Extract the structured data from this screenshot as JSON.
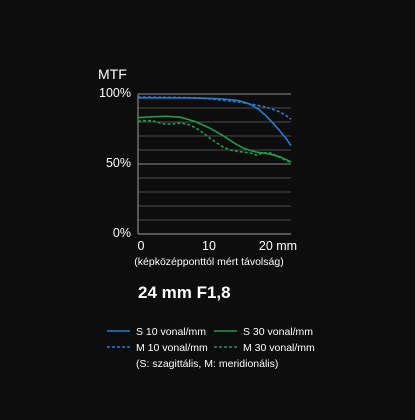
{
  "chart_data": {
    "type": "line",
    "ylabel": "MTF",
    "yticks": [
      "0%",
      "50%",
      "100%"
    ],
    "xticks": [
      "0",
      "10",
      "20 mm"
    ],
    "xlabel": "(képközépponttól mért távolság)",
    "xlim": [
      0,
      21.6
    ],
    "ylim": [
      0,
      100
    ],
    "lens": "24 mm F1,8",
    "colors": {
      "s10": "#1e7fd6",
      "m10": "#1e7fd6",
      "s30": "#1f9a4a",
      "m30": "#1f9a4a"
    },
    "series": [
      {
        "name": "S 10 vonal/mm",
        "style": "solid",
        "x": [
          0,
          4,
          8,
          10,
          12,
          14,
          15,
          16,
          17,
          18,
          19,
          20,
          21,
          21.6
        ],
        "y": [
          97.3,
          97.3,
          97.2,
          96.9,
          96.4,
          95.4,
          94.2,
          92.2,
          89.2,
          84.8,
          79.5,
          73.8,
          67.6,
          63.1
        ]
      },
      {
        "name": "M 10 vonal/mm",
        "style": "dashed",
        "x": [
          0,
          6,
          8,
          10,
          12,
          14,
          16,
          18,
          20,
          21,
          21.6
        ],
        "y": [
          97.8,
          97.5,
          97.2,
          96.6,
          95.6,
          94.4,
          92.8,
          90.8,
          87.3,
          84.2,
          82.0
        ]
      },
      {
        "name": "S 30 vonal/mm",
        "style": "solid",
        "x": [
          0,
          2,
          4,
          6,
          8,
          10,
          12,
          13,
          14,
          15,
          16,
          17,
          18,
          19,
          20,
          21,
          21.6
        ],
        "y": [
          83.1,
          83.7,
          84.1,
          83.4,
          80.4,
          76.0,
          70.3,
          66.9,
          63.7,
          61.1,
          59.4,
          58.3,
          57.6,
          56.6,
          55.2,
          53.0,
          51.4
        ]
      },
      {
        "name": "M 30 vonal/mm",
        "style": "dashed",
        "x": [
          0,
          1,
          2,
          3,
          4,
          5,
          6,
          7,
          8,
          9,
          10,
          11,
          12,
          13,
          14,
          15,
          16,
          16.8,
          17.5,
          18.3,
          19,
          20,
          21,
          21.6
        ],
        "y": [
          80.5,
          81.0,
          80.9,
          79.5,
          78.4,
          78.8,
          79.3,
          78.4,
          76.2,
          72.9,
          69.0,
          65.5,
          62.2,
          60.0,
          59.0,
          58.5,
          57.7,
          56.2,
          57.8,
          58.3,
          57.4,
          54.7,
          52.2,
          51.0
        ]
      }
    ],
    "legend_note": "(S: szagittális, M: meridionális)"
  }
}
